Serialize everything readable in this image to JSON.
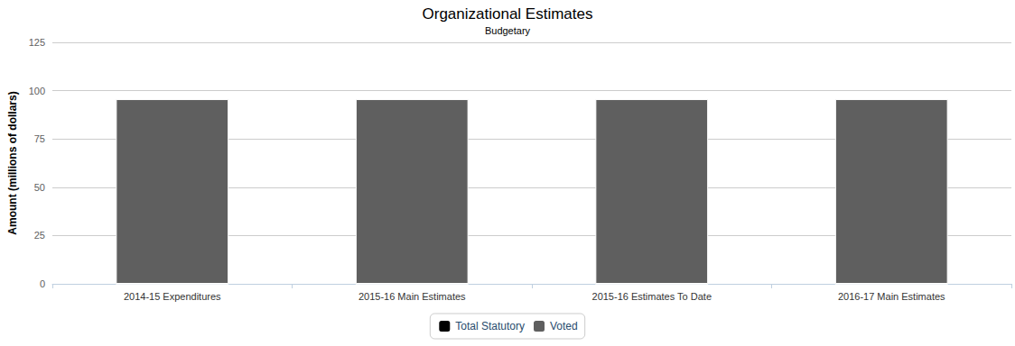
{
  "chart_data": {
    "type": "bar",
    "title": "Organizational Estimates",
    "subtitle": "Budgetary",
    "y_label": "Amount (millions of dollars)",
    "categories": [
      "2014-15 Expenditures",
      "2015-16 Main Estimates",
      "2015-16 Estimates To Date",
      "2016-17 Main Estimates"
    ],
    "series": [
      {
        "name": "Total Statutory",
        "color": "#000000",
        "values": [
          0,
          0,
          0,
          0
        ]
      },
      {
        "name": "Voted",
        "color": "#5f5f5f",
        "values": [
          95.6,
          95.6,
          95.6,
          95.6
        ]
      }
    ],
    "stacked": true,
    "ylim": [
      0,
      125
    ],
    "yticks": [
      0,
      25,
      50,
      75,
      100,
      125
    ],
    "grid": true,
    "legend": "bottom"
  }
}
